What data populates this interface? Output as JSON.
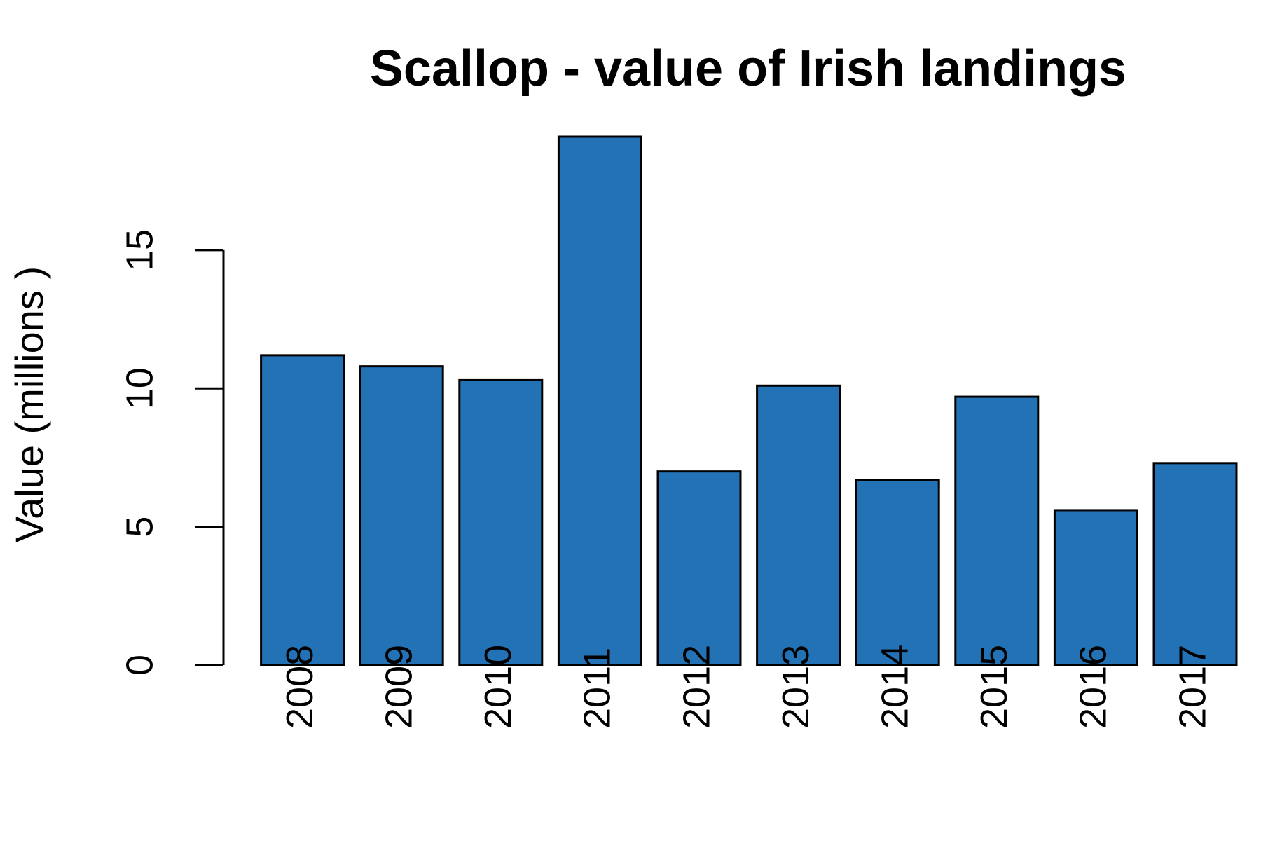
{
  "chart_data": {
    "type": "bar",
    "title": "Scallop - value of Irish landings",
    "y_label": "Value (millions )",
    "categories": [
      "2008",
      "2009",
      "2010",
      "2011",
      "2012",
      "2013",
      "2014",
      "2015",
      "2016",
      "2017"
    ],
    "values": [
      11.2,
      10.8,
      10.3,
      19.1,
      7.0,
      10.1,
      6.7,
      9.7,
      5.6,
      7.3
    ],
    "color": "#2372b5",
    "ylim": [
      0,
      19.1
    ],
    "yticks": [
      0,
      5,
      10,
      15
    ],
    "grid": false
  }
}
